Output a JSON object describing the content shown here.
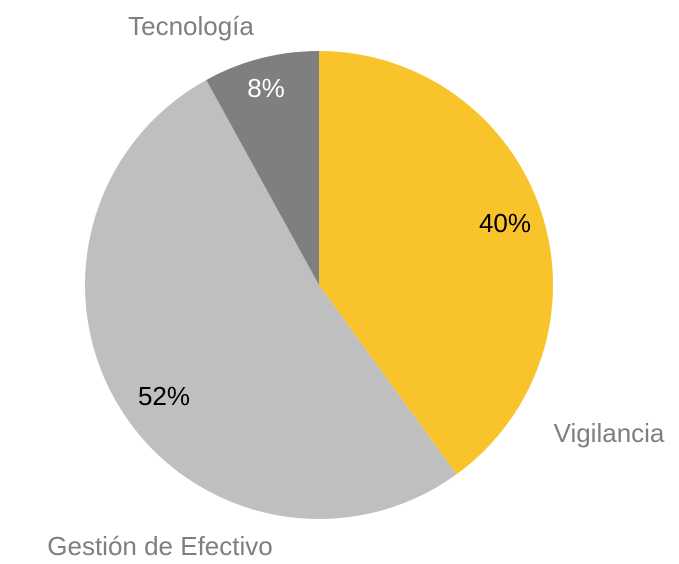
{
  "chart_data": {
    "type": "pie",
    "categories": [
      "Vigilancia",
      "Gestión de Efectivo",
      "Tecnología"
    ],
    "values": [
      40,
      52,
      8
    ],
    "value_labels": [
      "40%",
      "52%",
      "8%"
    ],
    "colors": [
      "#F9C42B",
      "#BFBFBF",
      "#7F7F7F"
    ]
  }
}
